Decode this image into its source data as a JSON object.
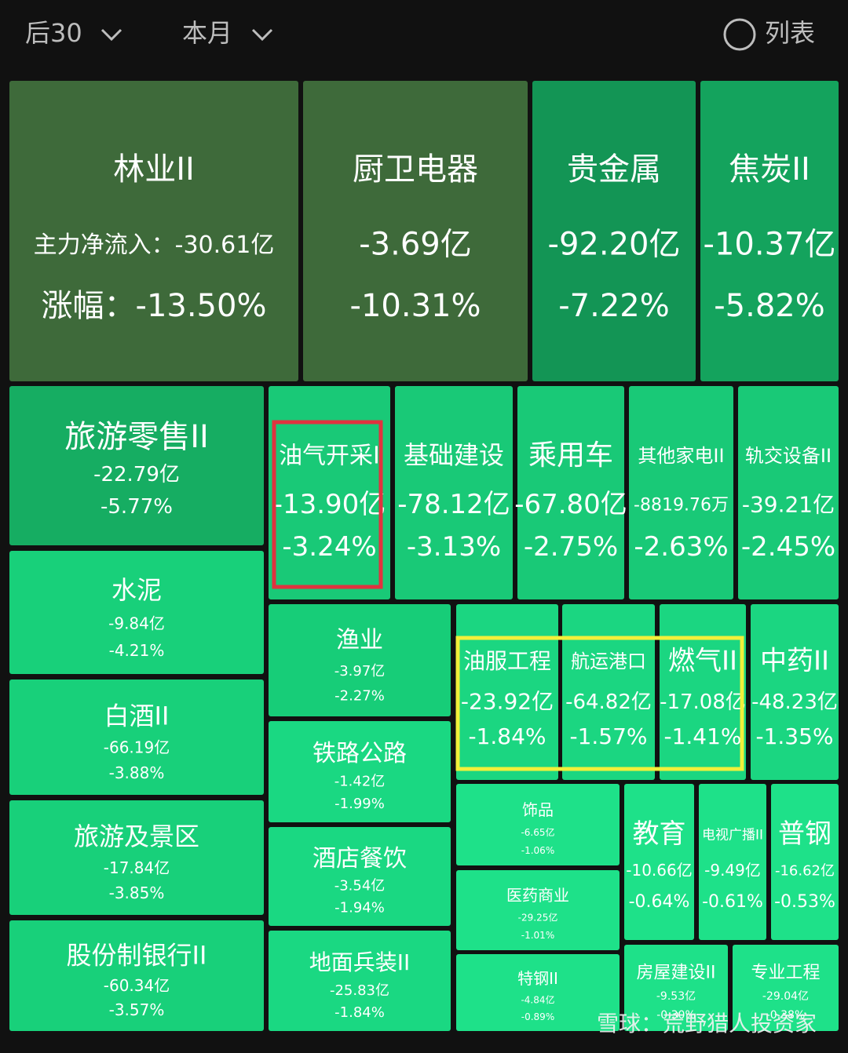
{
  "header": {
    "filter": "后30",
    "period": "本月",
    "list": "列表"
  },
  "tiles": [
    {
      "name": "林业II",
      "flow": "主力净流入：-30.61亿",
      "change": "涨幅：-13.50%"
    },
    {
      "name": "厨卫电器",
      "flow": "-3.69亿",
      "change": "-10.31%"
    },
    {
      "name": "贵金属",
      "flow": "-92.20亿",
      "change": "-7.22%"
    },
    {
      "name": "焦炭II",
      "flow": "-10.37亿",
      "change": "-5.82%"
    },
    {
      "name": "旅游零售II",
      "flow": "-22.79亿",
      "change": "-5.77%"
    },
    {
      "name": "水泥",
      "flow": "-9.84亿",
      "change": "-4.21%"
    },
    {
      "name": "白酒II",
      "flow": "-66.19亿",
      "change": "-3.88%"
    },
    {
      "name": "旅游及景区",
      "flow": "-17.84亿",
      "change": "-3.85%"
    },
    {
      "name": "股份制银行II",
      "flow": "-60.34亿",
      "change": "-3.57%"
    },
    {
      "name": "油气开采I",
      "flow": "-13.90亿",
      "change": "-3.24%"
    },
    {
      "name": "基础建设",
      "flow": "-78.12亿",
      "change": "-3.13%"
    },
    {
      "name": "乘用车",
      "flow": "-67.80亿",
      "change": "-2.75%"
    },
    {
      "name": "其他家电II",
      "flow": "-8819.76万",
      "change": "-2.63%"
    },
    {
      "name": "轨交设备II",
      "flow": "-39.21亿",
      "change": "-2.45%"
    },
    {
      "name": "渔业",
      "flow": "-3.97亿",
      "change": "-2.27%"
    },
    {
      "name": "铁路公路",
      "flow": "-1.42亿",
      "change": "-1.99%"
    },
    {
      "name": "酒店餐饮",
      "flow": "-3.54亿",
      "change": "-1.94%"
    },
    {
      "name": "地面兵装II",
      "flow": "-25.83亿",
      "change": "-1.84%"
    },
    {
      "name": "油服工程",
      "flow": "-23.92亿",
      "change": "-1.84%"
    },
    {
      "name": "航运港口",
      "flow": "-64.82亿",
      "change": "-1.57%"
    },
    {
      "name": "燃气II",
      "flow": "-17.08亿",
      "change": "-1.41%"
    },
    {
      "name": "中药II",
      "flow": "-48.23亿",
      "change": "-1.35%"
    },
    {
      "name": "饰品",
      "flow": "-6.65亿",
      "change": "-1.06%"
    },
    {
      "name": "医药商业",
      "flow": "-29.25亿",
      "change": "-1.01%"
    },
    {
      "name": "特钢II",
      "flow": "-4.84亿",
      "change": "-0.89%"
    },
    {
      "name": "教育",
      "flow": "-10.66亿",
      "change": "-0.64%"
    },
    {
      "name": "电视广播II",
      "flow": "-9.49亿",
      "change": "-0.61%"
    },
    {
      "name": "普钢",
      "flow": "-16.62亿",
      "change": "-0.53%"
    },
    {
      "name": "房屋建设II",
      "flow": "-9.53亿",
      "change": "-0.30%"
    },
    {
      "name": "专业工程",
      "flow": "-29.04亿",
      "change": "-0.38%"
    }
  ],
  "watermark": "雪球：荒野猎人投资家"
}
